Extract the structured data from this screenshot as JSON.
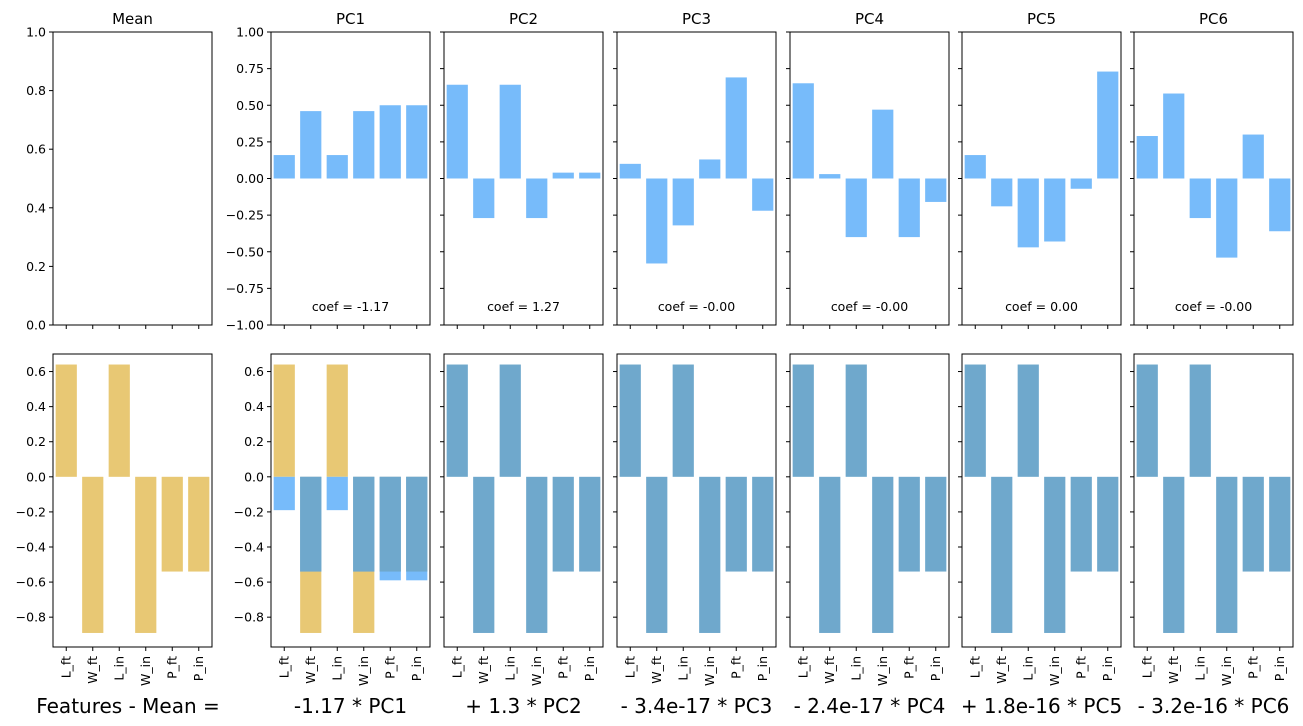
{
  "chart_data": {
    "type": "bar",
    "categories": [
      "L_ft",
      "W_ft",
      "L_in",
      "W_in",
      "P_ft",
      "P_in"
    ],
    "colors": {
      "component": "#77bbfa",
      "reconstruction": "#6fa8cc",
      "original": "#e8c874",
      "axes": "#000000"
    },
    "top_row": {
      "ylim": [
        -1.0,
        1.0
      ],
      "mean_ylim": [
        0.0,
        1.0
      ],
      "mean_ticks": [
        "0.0",
        "0.2",
        "0.4",
        "0.6",
        "0.8",
        "1.0"
      ],
      "pc_ticks": [
        "−1.00",
        "−0.75",
        "−0.50",
        "−0.25",
        "0.00",
        "0.25",
        "0.50",
        "0.75",
        "1.00"
      ],
      "panels": [
        {
          "title": "Mean",
          "values": [],
          "coef_label": ""
        },
        {
          "title": "PC1",
          "values": [
            0.16,
            0.46,
            0.16,
            0.46,
            0.5,
            0.5
          ],
          "coef_label": "coef = -1.17"
        },
        {
          "title": "PC2",
          "values": [
            0.64,
            -0.27,
            0.64,
            -0.27,
            0.04,
            0.04
          ],
          "coef_label": "coef = 1.27"
        },
        {
          "title": "PC3",
          "values": [
            0.1,
            -0.58,
            -0.32,
            0.13,
            0.69,
            -0.22
          ],
          "coef_label": "coef = -0.00"
        },
        {
          "title": "PC4",
          "values": [
            0.65,
            0.03,
            -0.4,
            0.47,
            -0.4,
            -0.16
          ],
          "coef_label": "coef = -0.00"
        },
        {
          "title": "PC5",
          "values": [
            0.16,
            -0.19,
            -0.47,
            -0.43,
            -0.07,
            0.73
          ],
          "coef_label": "coef = 0.00"
        },
        {
          "title": "PC6",
          "values": [
            0.29,
            0.58,
            -0.27,
            -0.54,
            0.3,
            -0.36
          ],
          "coef_label": "coef = -0.00"
        }
      ]
    },
    "bottom_row": {
      "ylim": [
        -0.97,
        0.7
      ],
      "ticks": [
        "0.6",
        "0.4",
        "0.2",
        "0.0",
        "−0.2",
        "−0.4",
        "−0.6",
        "−0.8"
      ],
      "target": [
        0.64,
        -0.89,
        0.64,
        -0.89,
        -0.54,
        -0.54
      ],
      "panels": [
        {
          "label": "Features - Mean =",
          "target": true,
          "reconstruction": null,
          "component": null
        },
        {
          "label": "-1.17 * PC1",
          "target": true,
          "reconstruction": [
            -0.19,
            -0.54,
            -0.19,
            -0.54,
            -0.59,
            -0.59
          ],
          "component": [
            -0.19,
            -0.54,
            -0.19,
            -0.54,
            -0.59,
            -0.59
          ]
        },
        {
          "label": "+  1.3 * PC2",
          "target": false,
          "reconstruction": [
            0.64,
            -0.89,
            0.64,
            -0.89,
            -0.54,
            -0.54
          ],
          "component": null
        },
        {
          "label": "- 3.4e-17 * PC3",
          "target": false,
          "reconstruction": [
            0.64,
            -0.89,
            0.64,
            -0.89,
            -0.54,
            -0.54
          ],
          "component": null
        },
        {
          "label": "- 2.4e-17 * PC4",
          "target": false,
          "reconstruction": [
            0.64,
            -0.89,
            0.64,
            -0.89,
            -0.54,
            -0.54
          ],
          "component": null
        },
        {
          "label": "+ 1.8e-16 * PC5",
          "target": false,
          "reconstruction": [
            0.64,
            -0.89,
            0.64,
            -0.89,
            -0.54,
            -0.54
          ],
          "component": null
        },
        {
          "label": "- 3.2e-16 * PC6",
          "target": false,
          "reconstruction": [
            0.64,
            -0.89,
            0.64,
            -0.89,
            -0.54,
            -0.54
          ],
          "component": null
        }
      ]
    }
  }
}
